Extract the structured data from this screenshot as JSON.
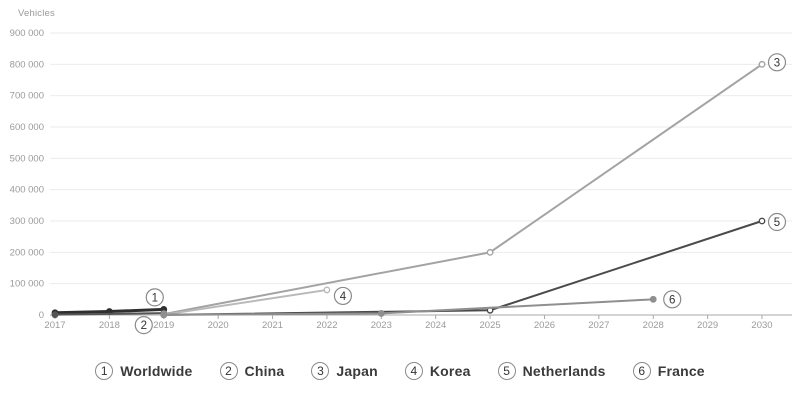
{
  "chart_data": {
    "type": "line",
    "title": "",
    "ylabel": "Vehicles",
    "xlabel": "",
    "xlim": [
      2017,
      2030
    ],
    "ylim": [
      0,
      900000
    ],
    "grid": "horizontal",
    "legend_position": "bottom-center",
    "x_ticks": [
      {
        "v": 2017,
        "label": "2017"
      },
      {
        "v": 2018,
        "label": "2018"
      },
      {
        "v": 2019,
        "label": "2019"
      },
      {
        "v": 2020,
        "label": "2020"
      },
      {
        "v": 2021,
        "label": "2021"
      },
      {
        "v": 2022,
        "label": "2022"
      },
      {
        "v": 2023,
        "label": "2023"
      },
      {
        "v": 2024,
        "label": "2024"
      },
      {
        "v": 2025,
        "label": "2025"
      },
      {
        "v": 2026,
        "label": "2026"
      },
      {
        "v": 2027,
        "label": "2027"
      },
      {
        "v": 2028,
        "label": "2028"
      },
      {
        "v": 2029,
        "label": "2029"
      },
      {
        "v": 2030,
        "label": "2030"
      }
    ],
    "y_ticks": [
      {
        "v": 0,
        "label": "0"
      },
      {
        "v": 100000,
        "label": "100 000"
      },
      {
        "v": 200000,
        "label": "200 000"
      },
      {
        "v": 300000,
        "label": "300 000"
      },
      {
        "v": 400000,
        "label": "400 000"
      },
      {
        "v": 500000,
        "label": "500 000"
      },
      {
        "v": 600000,
        "label": "600 000"
      },
      {
        "v": 700000,
        "label": "700 000"
      },
      {
        "v": 800000,
        "label": "800 000"
      },
      {
        "v": 900000,
        "label": "900 000"
      }
    ],
    "series": [
      {
        "num": "1",
        "name": "Worldwide",
        "color": "#2f2f2f",
        "width": 3,
        "marker": "solid",
        "points": [
          [
            2017,
            7000
          ],
          [
            2018,
            11000
          ],
          [
            2019,
            18000
          ]
        ],
        "badge_offset": [
          -9,
          -12
        ]
      },
      {
        "num": "2",
        "name": "China",
        "color": "#555555",
        "width": 2,
        "marker": "solid",
        "points": [
          [
            2017,
            1000
          ],
          [
            2019,
            6000
          ]
        ],
        "badge_offset": [
          -20,
          12
        ]
      },
      {
        "num": "3",
        "name": "Japan",
        "color": "#a3a3a3",
        "width": 2,
        "marker": "hollow",
        "points": [
          [
            2019,
            3000
          ],
          [
            2025,
            200000
          ],
          [
            2030,
            800000
          ]
        ],
        "badge_offset": [
          15,
          -2
        ]
      },
      {
        "num": "4",
        "name": "Korea",
        "color": "#b9b9b9",
        "width": 2,
        "marker": "hollow",
        "points": [
          [
            2019,
            1000
          ],
          [
            2022,
            80000
          ]
        ],
        "badge_offset": [
          16,
          6
        ]
      },
      {
        "num": "5",
        "name": "Netherlands",
        "color": "#4a4a4a",
        "width": 2,
        "marker": "hollow",
        "points": [
          [
            2019,
            500
          ],
          [
            2025,
            15000
          ],
          [
            2030,
            300000
          ]
        ],
        "badge_offset": [
          15,
          1
        ]
      },
      {
        "num": "6",
        "name": "France",
        "color": "#8f8f8f",
        "width": 2,
        "marker": "solid",
        "points": [
          [
            2019,
            500
          ],
          [
            2023,
            5000
          ],
          [
            2028,
            50000
          ]
        ],
        "badge_offset": [
          19,
          0
        ]
      }
    ]
  },
  "legend": {
    "items": [
      {
        "num": "1",
        "label": "Worldwide"
      },
      {
        "num": "2",
        "label": "China"
      },
      {
        "num": "3",
        "label": "Japan"
      },
      {
        "num": "4",
        "label": "Korea"
      },
      {
        "num": "5",
        "label": "Netherlands"
      },
      {
        "num": "6",
        "label": "France"
      }
    ]
  },
  "colors": {
    "background": "#ffffff",
    "grid": "#ebebeb",
    "axis": "#a8a8a8",
    "tick_label": "#9a9a9a",
    "axis_title": "#999999",
    "badge_border": "#8a8a8a",
    "badge_text": "#333333",
    "legend_text": "#3a3a3a"
  }
}
